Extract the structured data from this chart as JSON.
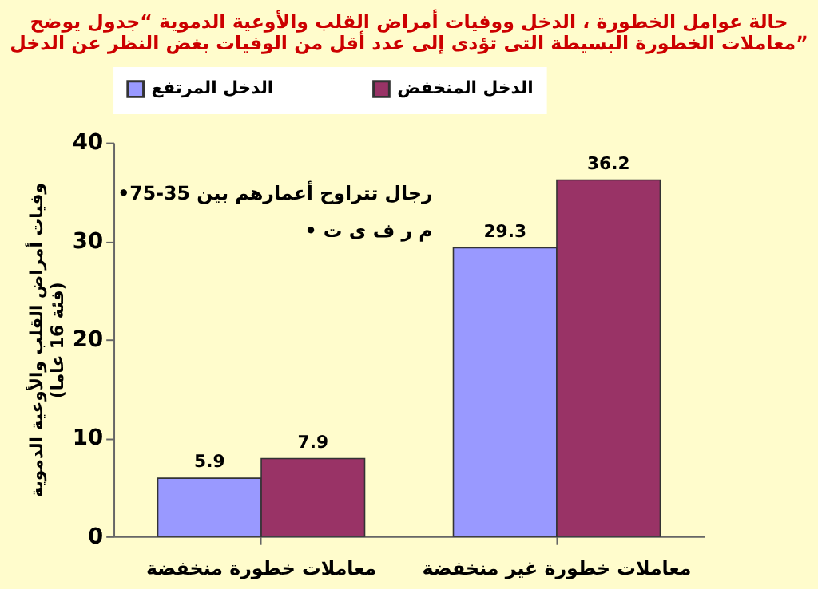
{
  "chart_data": {
    "type": "bar",
    "title": "حالة عوامل الخطورة ، الدخل ووفيات أمراض القلب والأوعية الدموية “جدول يوضح\nمعاملات الخطورة البسيطة التى تؤدى إلى عدد أقل من الوفيات بغض النظر عن الدخل”",
    "ylabel": "وفيات أمراض القلب والأوعية الدموية\n(فئة 16 عاما)",
    "categories": [
      "معاملات خطورة منخفضة",
      "معاملات خطورة غير منخفضة"
    ],
    "series": [
      {
        "name": "الدخل المرتفع",
        "color": "#9999ff",
        "values": [
          5.9,
          29.3
        ]
      },
      {
        "name": "الدخل المنخفض",
        "color": "#993366",
        "values": [
          7.9,
          36.2
        ]
      }
    ],
    "ylim": [
      0,
      40
    ],
    "yticks": [
      0,
      10,
      20,
      30,
      40
    ],
    "data_labels": true,
    "legend": "top",
    "grid": false,
    "annotations": [
      "•رجال تتراوح أعمارهم بين 35-75",
      "• م ر ف ى ت"
    ]
  }
}
